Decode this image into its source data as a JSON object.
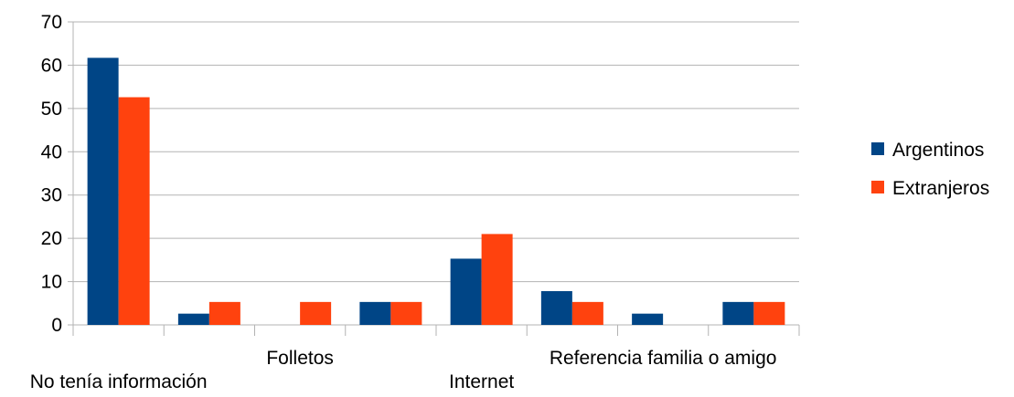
{
  "chart_data": {
    "type": "bar",
    "categories": [
      "No tenía información",
      "",
      "Folletos",
      "",
      "Internet",
      "",
      "Referencia familia o amigo",
      ""
    ],
    "series": [
      {
        "name": "Argentinos",
        "color": "#004586",
        "values": [
          61.7,
          2.6,
          0,
          5.3,
          15.3,
          7.8,
          2.6,
          5.3
        ]
      },
      {
        "name": "Extranjeros",
        "color": "#ff420e",
        "values": [
          52.6,
          5.3,
          5.3,
          5.3,
          21.0,
          5.3,
          0,
          5.3
        ]
      }
    ],
    "y_ticks": [
      "0",
      "10",
      "20",
      "30",
      "40",
      "50",
      "60",
      "70"
    ],
    "ylim": [
      0,
      70
    ],
    "grid": true,
    "legend_position": "right",
    "title": "",
    "xlabel": "",
    "ylabel": ""
  }
}
